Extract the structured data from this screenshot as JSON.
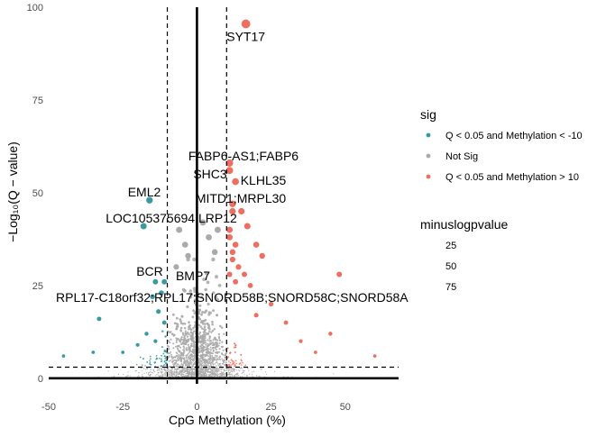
{
  "chart_data": {
    "type": "scatter",
    "xlabel": "CpG Methylation (%)",
    "ylabel": "−Log₁₀(Q − value)",
    "xlim": [
      -50,
      68
    ],
    "ylim": [
      -1.5,
      100
    ],
    "x_ticks": [
      -50,
      -25,
      0,
      25,
      50
    ],
    "x_tick_labels": [
      "-50",
      "-25",
      "0",
      "25",
      "50"
    ],
    "y_ticks": [
      0,
      25,
      50,
      75,
      100
    ],
    "y_tick_labels": [
      "0",
      "25",
      "50",
      "75",
      "100"
    ],
    "grid": false,
    "reference_lines": {
      "vertical_solid": 0,
      "vertical_dashed": [
        -10,
        10
      ],
      "horizontal_dashed": 3,
      "horizontal_solid": 0
    },
    "colors": {
      "down": "#3B9AA0",
      "not_sig": "#AAAAAA",
      "up": "#EE6F62"
    },
    "legend": {
      "placement": "right",
      "color_title": "sig",
      "color_entries": [
        {
          "label": "Q < 0.05 and Methylation < -10",
          "color": "#3B9AA0"
        },
        {
          "label": "Not Sig",
          "color": "#AAAAAA"
        },
        {
          "label": "Q < 0.05 and Methylation > 10",
          "color": "#EE6F62"
        }
      ],
      "size_title": "minuslogpvalue",
      "size_entries": [
        "25",
        "50",
        "75"
      ]
    },
    "labeled_points": [
      {
        "label": "SYT17",
        "x": 16.5,
        "y": 95.5,
        "group": "up"
      },
      {
        "label": "FABP6-AS1;FABP6",
        "x": 11,
        "y": 58,
        "group": "up"
      },
      {
        "label": "SHC3",
        "x": 11,
        "y": 56,
        "group": "up"
      },
      {
        "label": "KLHL35",
        "x": 13,
        "y": 53,
        "group": "up"
      },
      {
        "label": "MITD1;MRPL30",
        "x": 12,
        "y": 45,
        "group": "up"
      },
      {
        "label": "EML2",
        "x": -16,
        "y": 48,
        "group": "down"
      },
      {
        "label": "LOC105375694;LRP12",
        "x": -18,
        "y": 41,
        "group": "down"
      },
      {
        "label": "BCR",
        "x": -14,
        "y": 26,
        "group": "down"
      },
      {
        "label": "BMP7",
        "x": -11,
        "y": 26,
        "group": "down"
      },
      {
        "label": "RPL17-C18orf32;RPL17;SNORD58B;SNORD58C;SNORD58A",
        "x": -12,
        "y": 23,
        "group": "down"
      }
    ],
    "highlight_points": [
      {
        "x": 12,
        "y": 47,
        "group": "up"
      },
      {
        "x": 15,
        "y": 45,
        "group": "up"
      },
      {
        "x": 17,
        "y": 41,
        "group": "up"
      },
      {
        "x": 11,
        "y": 40,
        "group": "up"
      },
      {
        "x": 11,
        "y": 38,
        "group": "up"
      },
      {
        "x": 13,
        "y": 36,
        "group": "up"
      },
      {
        "x": 12,
        "y": 34,
        "group": "up"
      },
      {
        "x": 20,
        "y": 36,
        "group": "up"
      },
      {
        "x": 22,
        "y": 33,
        "group": "up"
      },
      {
        "x": 12,
        "y": 32,
        "group": "up"
      },
      {
        "x": 14,
        "y": 30,
        "group": "up"
      },
      {
        "x": 11,
        "y": 28,
        "group": "up"
      },
      {
        "x": 16,
        "y": 28,
        "group": "up"
      },
      {
        "x": 13,
        "y": 26,
        "group": "up"
      },
      {
        "x": 18,
        "y": 25,
        "group": "up"
      },
      {
        "x": 48,
        "y": 28,
        "group": "up"
      },
      {
        "x": 25,
        "y": 20,
        "group": "up"
      },
      {
        "x": 20,
        "y": 17,
        "group": "up"
      },
      {
        "x": 30,
        "y": 15,
        "group": "up"
      },
      {
        "x": 35,
        "y": 10,
        "group": "up"
      },
      {
        "x": 45,
        "y": 12,
        "group": "up"
      },
      {
        "x": 60,
        "y": 6,
        "group": "up"
      },
      {
        "x": 40,
        "y": 7,
        "group": "up"
      },
      {
        "x": -33,
        "y": 16,
        "group": "down"
      },
      {
        "x": -15,
        "y": 22,
        "group": "down"
      },
      {
        "x": -13,
        "y": 18,
        "group": "down"
      },
      {
        "x": -11,
        "y": 15,
        "group": "down"
      },
      {
        "x": -17,
        "y": 12,
        "group": "down"
      },
      {
        "x": -20,
        "y": 9,
        "group": "down"
      },
      {
        "x": -25,
        "y": 7,
        "group": "down"
      },
      {
        "x": -35,
        "y": 7,
        "group": "down"
      },
      {
        "x": -45,
        "y": 6,
        "group": "down"
      },
      {
        "x": -14,
        "y": 10,
        "group": "down"
      },
      {
        "x": -6,
        "y": 40,
        "group": "not_sig"
      },
      {
        "x": -4,
        "y": 36,
        "group": "not_sig"
      },
      {
        "x": -3,
        "y": 33,
        "group": "not_sig"
      },
      {
        "x": 2,
        "y": 42,
        "group": "not_sig"
      },
      {
        "x": 4,
        "y": 38,
        "group": "not_sig"
      },
      {
        "x": 7,
        "y": 40,
        "group": "not_sig"
      },
      {
        "x": -7,
        "y": 30,
        "group": "not_sig"
      },
      {
        "x": 6,
        "y": 34,
        "group": "not_sig"
      }
    ]
  }
}
